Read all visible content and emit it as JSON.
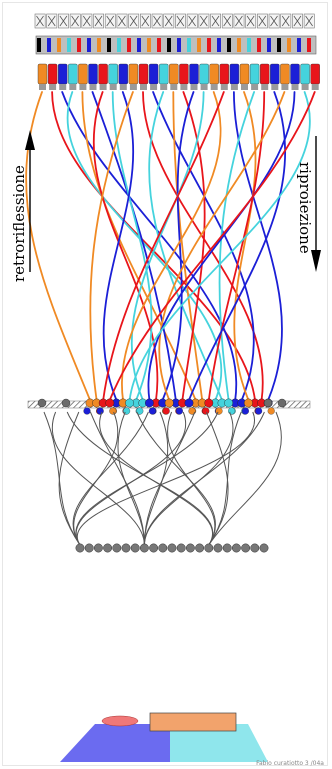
{
  "labels": {
    "left_arrow_text": "retroriflessione",
    "right_arrow_text": "riproiezione",
    "caption": "Fabio curatiotto 3 /04a"
  },
  "icons": {
    "top_cells": "xor-cell-icon",
    "connector": "connector-block-icon",
    "junction": "junction-dot-icon"
  },
  "colors": {
    "orange": "#f08a24",
    "red": "#e8151b",
    "blue": "#1b1fd6",
    "cyan": "#45d3dd",
    "gray": "#6b6b6b",
    "plate_blue": "#6b6bf0",
    "plate_cyan": "#8fe6ec",
    "plate_box": "#f2a36c",
    "ellipse": "#f07878"
  },
  "wire_colors": [
    "orange",
    "red",
    "blue",
    "cyan",
    "orange",
    "blue",
    "red",
    "cyan",
    "blue",
    "orange",
    "red",
    "blue",
    "cyan",
    "orange",
    "red",
    "blue",
    "cyan",
    "orange",
    "red",
    "blue",
    "orange",
    "cyan",
    "red",
    "blue",
    "orange",
    "blue",
    "cyan",
    "red"
  ]
}
